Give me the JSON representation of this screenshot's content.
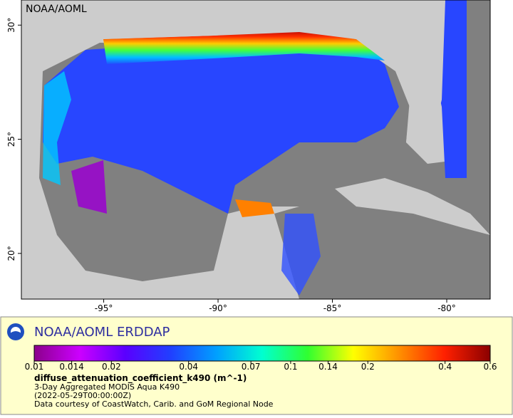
{
  "map": {
    "credit": "NOAA/AOML",
    "lonlim": [
      -98.6,
      -78.1
    ],
    "latlim": [
      18,
      31.1
    ],
    "lon_ticks": [
      {
        "value": -95,
        "label": "-95°"
      },
      {
        "value": -90,
        "label": "-90°"
      },
      {
        "value": -85,
        "label": "-85°"
      },
      {
        "value": -80,
        "label": "-80°"
      }
    ],
    "lat_ticks": [
      {
        "value": 30,
        "label": "30°"
      },
      {
        "value": 25,
        "label": "25°"
      },
      {
        "value": 20,
        "label": "20°"
      }
    ]
  },
  "legend": {
    "title": "NOAA/AOML ERDDAP",
    "colorbar": {
      "lim": [
        0.01,
        0.6
      ],
      "log": true,
      "ticks": [
        0.01,
        0.014,
        0.02,
        0.04,
        0.07,
        0.1,
        0.14,
        0.2,
        0.4,
        0.6
      ],
      "colors": [
        "#8b008b",
        "#cc00ff",
        "#5a00ff",
        "#2040ff",
        "#00a0ff",
        "#00ffd0",
        "#30ff30",
        "#ffff00",
        "#ff9000",
        "#ff2000",
        "#8b0000"
      ]
    },
    "variable": "diffuse_attenuation_coefficient_k490 (m^-1)",
    "lines": [
      "3-Day Aggregated MODIS Aqua K490",
      "(2022-05-29T00:00:00Z)",
      "Data courtesy of CoastWatch, Carib. and GoM Regional Node"
    ]
  }
}
